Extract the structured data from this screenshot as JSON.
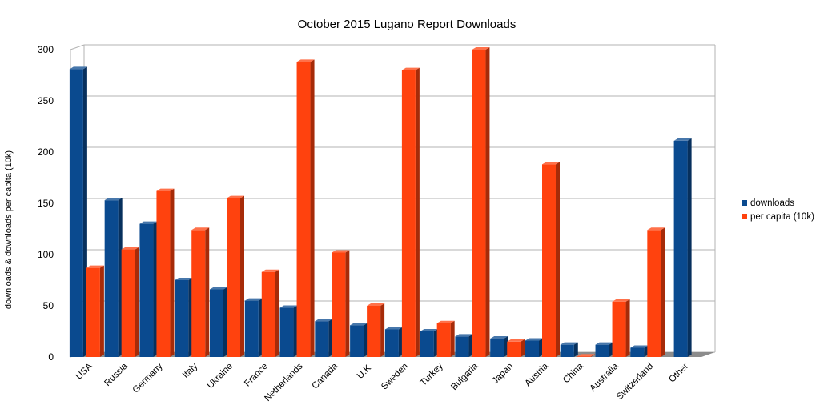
{
  "chart_data": {
    "type": "bar",
    "title": "October 2015 Lugano Report Downloads",
    "ylabel": "downloads & downloads per capita (10k)",
    "xlabel": "",
    "ylim": [
      0,
      300
    ],
    "yticks": [
      0,
      50,
      100,
      150,
      200,
      250,
      300
    ],
    "grid": true,
    "legend_position": "right",
    "categories": [
      "USA",
      "Russia",
      "Germany",
      "Italy",
      "Ukraine",
      "France",
      "Netherlands",
      "Canada",
      "U.K.",
      "Sweden",
      "Turkey",
      "Bulgaria",
      "Japan",
      "Austria",
      "China",
      "Australia",
      "Switzerland",
      "Other"
    ],
    "series": [
      {
        "name": "downloads",
        "color": "#0a4a8f",
        "values": [
          281,
          153,
          130,
          75,
          66,
          55,
          48,
          35,
          31,
          27,
          25,
          20,
          18,
          16,
          12,
          12,
          9,
          211
        ]
      },
      {
        "name": "per capita (10k)",
        "color": "#ff420e",
        "values": [
          87,
          105,
          162,
          124,
          155,
          83,
          288,
          102,
          50,
          280,
          33,
          300,
          15,
          188,
          0.5,
          54,
          124,
          null
        ]
      }
    ]
  }
}
